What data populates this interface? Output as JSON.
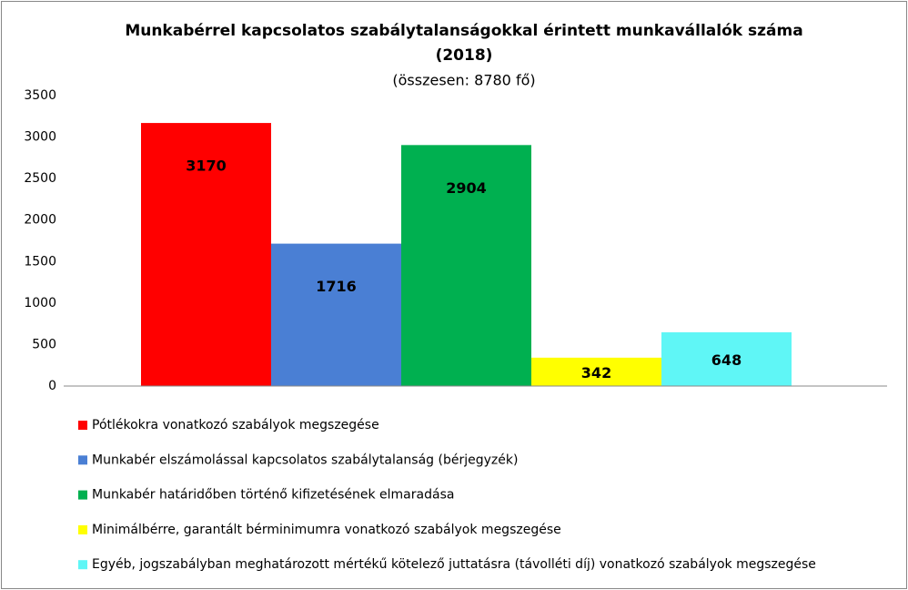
{
  "chart_data": {
    "type": "bar",
    "title": [
      "Munkabérrel kapcsolatos szabálytalanságokkal érintett munkavállalók száma",
      "(2018)"
    ],
    "subtitle": "(összesen: 8780 fő)",
    "categories": [
      null
    ],
    "series": [
      {
        "name": "Pótlékokra vonatkozó szabályok megszegése",
        "color": "#ff0000",
        "values": [
          3170
        ]
      },
      {
        "name": "Munkabér elszámolással kapcsolatos szabálytalanság (bérjegyzék)",
        "color": "#4a7fd4",
        "values": [
          1716
        ]
      },
      {
        "name": "Munkabér határidőben történő kifizetésének elmaradása",
        "color": "#00b050",
        "values": [
          2904
        ]
      },
      {
        "name": "Minimálbérre, garantált bérminimumra vonatkozó szabályok megszegése",
        "color": "#ffff00",
        "values": [
          342
        ]
      },
      {
        "name": "Egyéb, jogszabályban meghatározott mértékű kötelező juttatásra (távolléti díj) vonatkozó szabályok megszegése",
        "color": "#5ff6f6",
        "values": [
          648
        ]
      }
    ],
    "ylim": [
      0,
      3500
    ],
    "yticks": [
      0,
      500,
      1000,
      1500,
      2000,
      2500,
      3000,
      3500
    ],
    "grid": false,
    "legend": "bottom"
  }
}
